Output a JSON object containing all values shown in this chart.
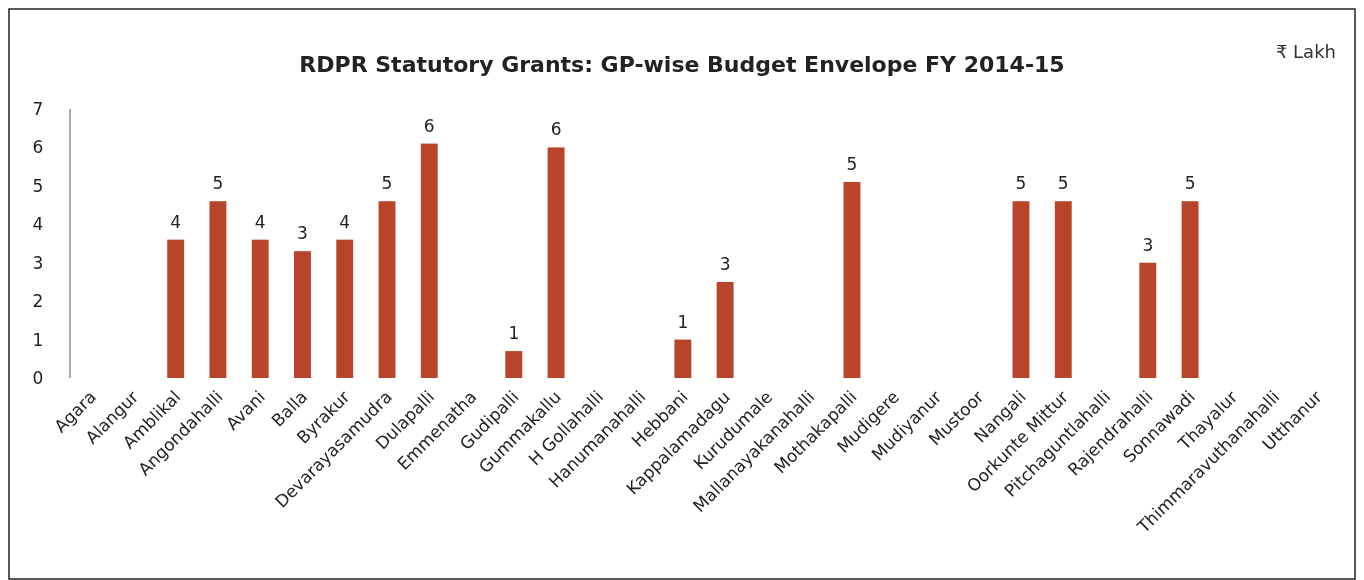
{
  "chart_data": {
    "type": "bar",
    "title": "RDPR Statutory Grants: GP-wise Budget Envelope FY 2014-15",
    "annotations": [
      "₹ Lakh"
    ],
    "categories": [
      "Agara",
      "Alangur",
      "Amblikal",
      "Angondahalli",
      "Avani",
      "Balla",
      "Byrakur",
      "Devarayasamudra",
      "Dulapalli",
      "Emmenatha",
      "Gudipalli",
      "Gummakallu",
      "H Gollahalli",
      "Hanumanahalli",
      "Hebbani",
      "Kappalamadagu",
      "Kurudumale",
      "Mallanayakanahalli",
      "Mothakapalli",
      "Mudigere",
      "Mudiyanur",
      "Mustoor",
      "Nangali",
      "Oorkunte Mittur",
      "Pitchaguntlahalli",
      "Rajendrahalli",
      "Sonnawadi",
      "Thayalur",
      "Thimmaravuthanahalli",
      "Utthanur"
    ],
    "values": [
      null,
      null,
      3.6,
      4.6,
      3.6,
      3.3,
      3.6,
      4.6,
      6.1,
      null,
      0.7,
      6.0,
      null,
      null,
      1.0,
      2.5,
      null,
      null,
      5.1,
      null,
      null,
      null,
      4.6,
      4.6,
      null,
      3.0,
      4.6,
      null,
      null,
      null
    ],
    "value_labels": [
      null,
      null,
      "4",
      "5",
      "4",
      "3",
      "4",
      "5",
      "6",
      null,
      "1",
      "6",
      null,
      null,
      "1",
      "3",
      null,
      null,
      "5",
      null,
      null,
      null,
      "5",
      "5",
      null,
      "3",
      "5",
      null,
      null,
      null
    ],
    "color": "#b84429",
    "ylim": [
      0,
      7
    ],
    "yticks": [
      0,
      1,
      2,
      3,
      4,
      5,
      6,
      7
    ]
  }
}
